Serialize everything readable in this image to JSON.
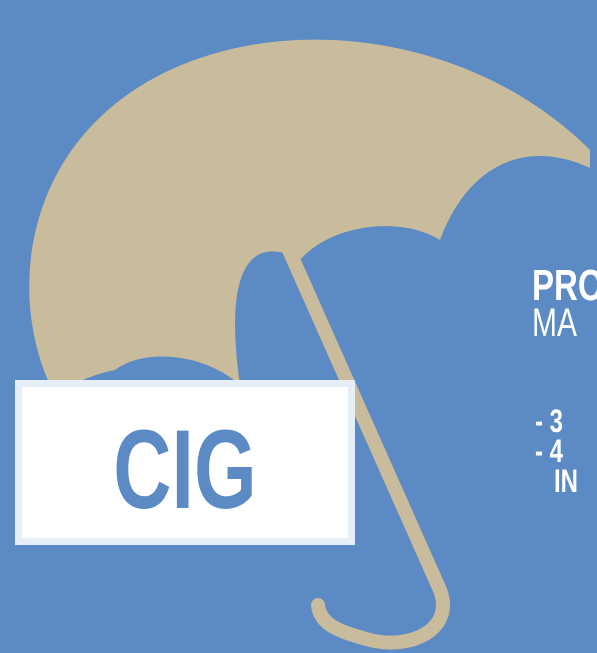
{
  "logo": {
    "text": "CIG"
  },
  "headline": {
    "line1": "PRO",
    "line2": "MA"
  },
  "list": {
    "items": [
      "- 3",
      "- 4"
    ],
    "continuation": "IN"
  }
}
